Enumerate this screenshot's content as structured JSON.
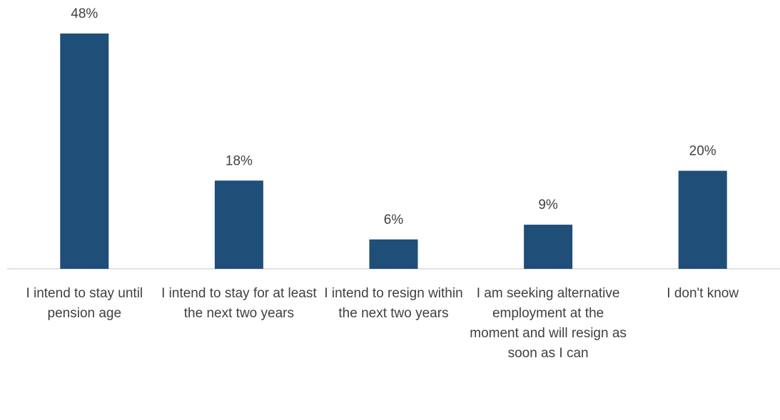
{
  "chart_data": {
    "type": "bar",
    "categories": [
      "I intend to stay until pension age",
      "I intend to stay for at least the next two years",
      "I intend to resign within the next two years",
      "I am seeking alternative employment at the moment and will resign as soon as I can",
      "I don't know"
    ],
    "values": [
      48,
      18,
      6,
      9,
      20
    ],
    "value_labels": [
      "48%",
      "18%",
      "6%",
      "9%",
      "20%"
    ],
    "color": "#1f4e79"
  }
}
